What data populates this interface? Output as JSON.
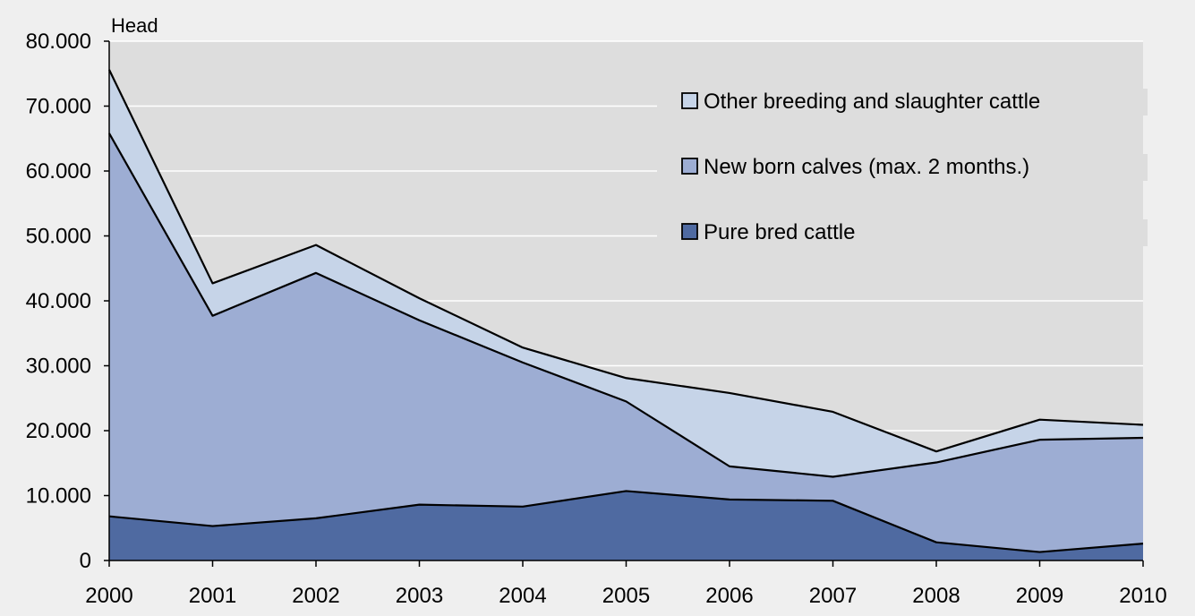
{
  "chart_data": {
    "type": "area",
    "stacked": true,
    "unit_label": "Head",
    "categories": [
      "2000",
      "2001",
      "2002",
      "2003",
      "2004",
      "2005",
      "2006",
      "2007",
      "2008",
      "2009",
      "2010"
    ],
    "y_ticks": [
      {
        "value": 0,
        "label": "0"
      },
      {
        "value": 10000,
        "label": "10.000"
      },
      {
        "value": 20000,
        "label": "20.000"
      },
      {
        "value": 30000,
        "label": "30.000"
      },
      {
        "value": 40000,
        "label": "40.000"
      },
      {
        "value": 50000,
        "label": "50.000"
      },
      {
        "value": 60000,
        "label": "60.000"
      },
      {
        "value": 70000,
        "label": "70.000"
      },
      {
        "value": 80000,
        "label": "80.000"
      }
    ],
    "ylim": [
      0,
      80000
    ],
    "grid": true,
    "legend_position": "top-right",
    "series": [
      {
        "name": "Pure bred cattle",
        "color": "#4f6aa1",
        "values": [
          6800,
          5300,
          6500,
          8600,
          8300,
          10700,
          9400,
          9200,
          2800,
          1300,
          2600
        ]
      },
      {
        "name": "New born calves (max. 2 months.)",
        "color": "#9dadd3",
        "values": [
          59000,
          32400,
          37800,
          28400,
          22200,
          13800,
          5100,
          3700,
          12300,
          17300,
          16300
        ]
      },
      {
        "name": "Other breeding and slaughter cattle",
        "color": "#c6d4e8",
        "values": [
          9800,
          5000,
          4300,
          3400,
          2300,
          3600,
          11300,
          10000,
          1700,
          3100,
          2000
        ]
      }
    ]
  },
  "colors": {
    "page_background": "#efefef",
    "plot_background": "#dddddd",
    "gridline": "#ffffff",
    "outline": "#000000"
  }
}
